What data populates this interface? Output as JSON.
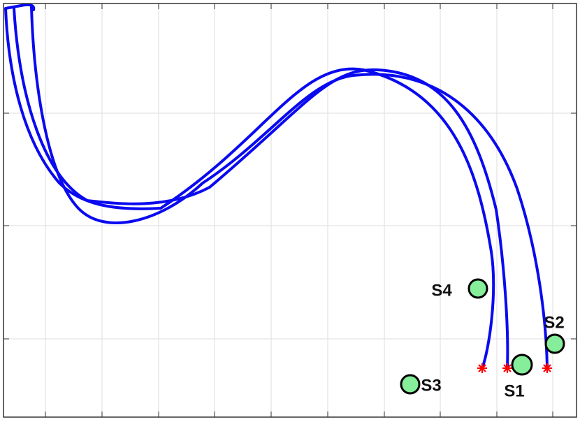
{
  "markers": [
    {
      "label": "S4"
    },
    {
      "label": "S2"
    },
    {
      "label": "S1"
    },
    {
      "label": "S3"
    }
  ]
}
